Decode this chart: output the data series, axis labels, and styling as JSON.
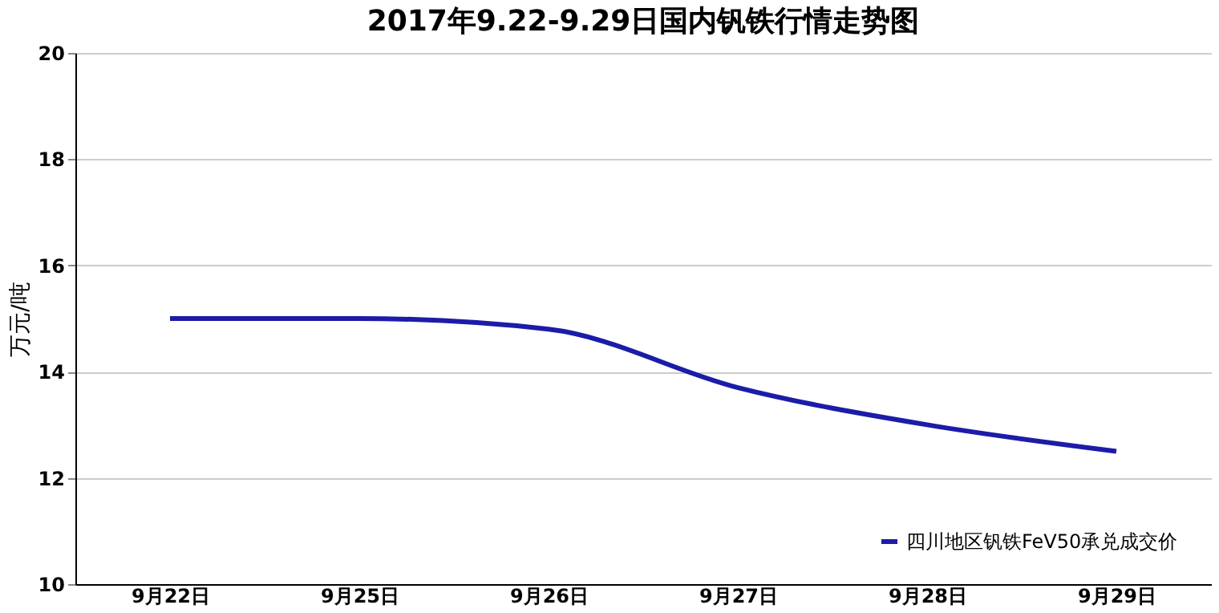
{
  "chart_data": {
    "type": "line",
    "title": "2017年9.22-9.29日国内钒铁行情走势图",
    "ylabel": "万元/吨",
    "categories": [
      "9月22日",
      "9月25日",
      "9月26日",
      "9月27日",
      "9月28日",
      "9月29日"
    ],
    "series": [
      {
        "name": "四川地区钒铁FeV50承兑成交价",
        "color": "#1c1ca8",
        "values": [
          15,
          15,
          14.8,
          13.7,
          13,
          12.5
        ]
      }
    ],
    "ylim": [
      10,
      20
    ],
    "yticks": [
      10,
      12,
      14,
      16,
      18,
      20
    ],
    "grid": "y",
    "legend": "bottom right",
    "marker": "none",
    "line_style": "solid"
  }
}
